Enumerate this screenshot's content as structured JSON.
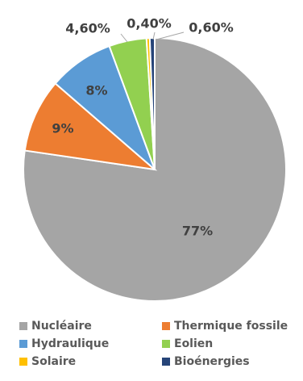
{
  "chart_data": {
    "type": "pie",
    "title": "",
    "categories": [
      "Nucléaire",
      "Thermique fossile",
      "Hydraulique",
      "Eolien",
      "Solaire",
      "Bioénergies"
    ],
    "values": [
      77,
      9,
      8,
      4.6,
      0.4,
      0.6
    ],
    "data_labels": [
      "77%",
      "9%",
      "8%",
      "4,60%",
      "0,40%",
      "0,60%"
    ],
    "colors": [
      "#a5a5a5",
      "#ed7d31",
      "#5b9bd5",
      "#92d050",
      "#ffc000",
      "#264478"
    ],
    "legend_position": "bottom"
  }
}
